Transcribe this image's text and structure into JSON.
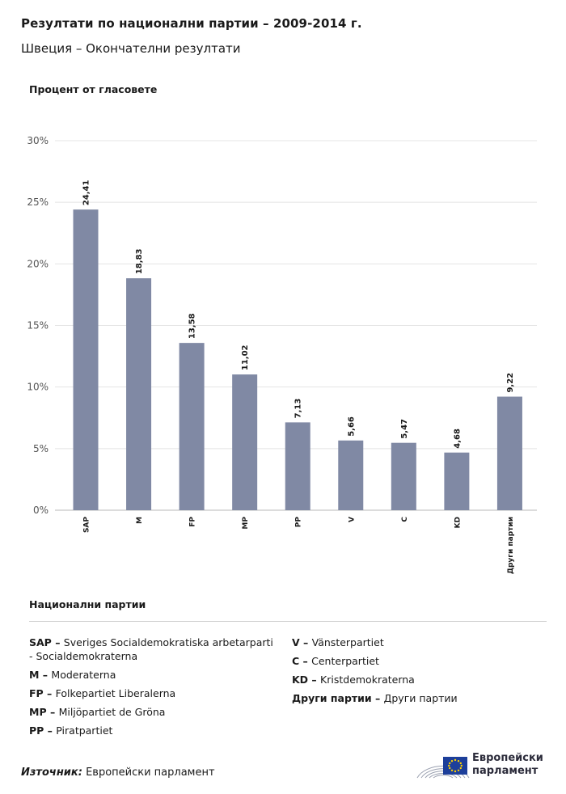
{
  "header": {
    "title": "Резултати по национални партии – 2009-2014 г.",
    "subtitle": "Швеция – Окончателни резултати"
  },
  "chart_data": {
    "type": "bar",
    "ylabel": "Процент от гласовете",
    "xlabel": "Национални партии",
    "ylim": [
      0,
      30
    ],
    "yticks": [
      0,
      5,
      10,
      15,
      20,
      25,
      30
    ],
    "ytick_labels": [
      "0%",
      "5%",
      "10%",
      "15%",
      "20%",
      "25%",
      "30%"
    ],
    "grid": true,
    "bar_color": "#8089a4",
    "categories": [
      "SAP",
      "M",
      "FP",
      "MP",
      "PP",
      "V",
      "C",
      "KD",
      "Други партии"
    ],
    "values": [
      24.41,
      18.83,
      13.58,
      11.02,
      7.13,
      5.66,
      5.47,
      4.68,
      9.22
    ],
    "value_labels": [
      "24,41",
      "18,83",
      "13,58",
      "11,02",
      "7,13",
      "5,66",
      "5,47",
      "4,68",
      "9,22"
    ]
  },
  "legend": {
    "title": "Национални партии",
    "left": [
      {
        "abbr": "SAP –",
        "name": "Sveriges Socialdemokratiska arbetarparti - Socialdemokraterna"
      },
      {
        "abbr": "M –",
        "name": "Moderaterna"
      },
      {
        "abbr": "FP –",
        "name": "Folkepartiet Liberalerna"
      },
      {
        "abbr": "MP –",
        "name": "Miljöpartiet de Gröna"
      },
      {
        "abbr": "PP –",
        "name": "Piratpartiet"
      }
    ],
    "right": [
      {
        "abbr": "V –",
        "name": "Vänsterpartiet"
      },
      {
        "abbr": "C –",
        "name": "Centerpartiet"
      },
      {
        "abbr": "KD –",
        "name": "Kristdemokraterna"
      },
      {
        "abbr": "Други партии –",
        "name": "Други партии"
      }
    ]
  },
  "footer": {
    "source_label": "Източник:",
    "source_value": "Европейски парламент",
    "logo_line1": "Европейски",
    "logo_line2": "парламент"
  }
}
